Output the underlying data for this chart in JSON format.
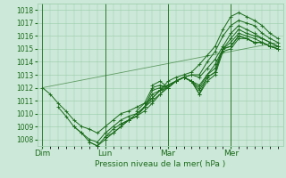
{
  "bg_color": "#cce8d8",
  "grid_color": "#99ccaa",
  "line_color": "#1a6b1a",
  "marker_color": "#1a6b1a",
  "xlabel": "Pression niveau de la mer( hPa )",
  "ylim": [
    1007.5,
    1018.5
  ],
  "yticks": [
    1008,
    1009,
    1010,
    1011,
    1012,
    1013,
    1014,
    1015,
    1016,
    1017,
    1018
  ],
  "xlabels": [
    "Dim",
    "Lun",
    "Mar",
    "Mer"
  ],
  "xtick_positions": [
    0,
    24,
    48,
    72
  ],
  "xlim": [
    -2,
    92
  ],
  "lines": [
    {
      "x": [
        0,
        3,
        6,
        9,
        12,
        15,
        18,
        21,
        24,
        27,
        30,
        33,
        36,
        39,
        42,
        45,
        48,
        51,
        54,
        57,
        60,
        63,
        66,
        69,
        72,
        75,
        78,
        81,
        84,
        87,
        90
      ],
      "y": [
        1012.0,
        1011.5,
        1010.8,
        1010.2,
        1009.5,
        1009.0,
        1008.8,
        1008.5,
        1009.0,
        1009.5,
        1010.0,
        1010.2,
        1010.5,
        1010.8,
        1011.2,
        1011.8,
        1012.5,
        1012.8,
        1013.0,
        1013.2,
        1013.8,
        1014.5,
        1015.2,
        1016.5,
        1017.5,
        1017.8,
        1017.5,
        1017.2,
        1016.8,
        1016.2,
        1015.8
      ]
    },
    {
      "x": [
        6,
        9,
        12,
        15,
        18,
        21,
        24,
        27,
        30,
        33,
        36,
        39,
        42,
        45,
        48,
        51,
        54,
        57,
        60,
        63,
        66,
        69,
        72,
        75,
        78,
        81,
        84,
        87,
        90
      ],
      "y": [
        1010.5,
        1009.8,
        1009.0,
        1008.5,
        1008.0,
        1007.8,
        1008.5,
        1009.0,
        1009.5,
        1009.8,
        1010.0,
        1010.5,
        1011.0,
        1011.5,
        1012.2,
        1012.5,
        1012.8,
        1013.0,
        1013.0,
        1014.0,
        1014.8,
        1016.0,
        1016.8,
        1017.2,
        1017.0,
        1016.8,
        1016.2,
        1015.8,
        1015.5
      ]
    },
    {
      "x": [
        12,
        15,
        18,
        21,
        24,
        27,
        30,
        33,
        36,
        39,
        42,
        45,
        48,
        51,
        54,
        57,
        60,
        63,
        66,
        69,
        72,
        75,
        78,
        81,
        84,
        87,
        90
      ],
      "y": [
        1009.0,
        1008.5,
        1007.8,
        1007.5,
        1008.2,
        1008.8,
        1009.2,
        1009.5,
        1009.8,
        1010.2,
        1010.8,
        1011.5,
        1012.0,
        1012.5,
        1012.8,
        1013.0,
        1012.8,
        1013.5,
        1014.2,
        1015.2,
        1016.2,
        1016.8,
        1016.5,
        1016.2,
        1015.8,
        1015.5,
        1015.2
      ]
    },
    {
      "x": [
        18,
        21,
        24,
        27,
        30,
        33,
        36,
        39,
        42,
        45,
        48,
        51,
        54,
        57,
        60,
        63,
        66,
        69,
        72,
        75,
        78,
        81,
        84,
        87,
        90
      ],
      "y": [
        1007.8,
        1007.5,
        1008.0,
        1008.5,
        1009.0,
        1009.5,
        1009.8,
        1010.5,
        1011.2,
        1011.8,
        1012.2,
        1012.5,
        1012.8,
        1012.5,
        1012.2,
        1013.0,
        1013.8,
        1015.0,
        1015.8,
        1016.5,
        1016.2,
        1016.0,
        1015.8,
        1015.5,
        1015.2
      ]
    },
    {
      "x": [
        24,
        27,
        30,
        33,
        36,
        39,
        42,
        45,
        48,
        51,
        54,
        57,
        60,
        63,
        66,
        69,
        72,
        75,
        78,
        81,
        84,
        87,
        90
      ],
      "y": [
        1008.2,
        1008.5,
        1009.0,
        1009.5,
        1009.8,
        1010.5,
        1011.5,
        1011.8,
        1012.0,
        1012.5,
        1012.8,
        1012.5,
        1012.0,
        1013.0,
        1013.5,
        1015.0,
        1015.5,
        1016.2,
        1016.0,
        1015.8,
        1015.5,
        1015.2,
        1015.0
      ]
    },
    {
      "x": [
        30,
        33,
        36,
        39,
        42,
        45,
        48,
        51,
        54,
        57,
        60,
        63,
        66,
        69,
        72,
        75,
        78,
        81,
        84,
        87,
        90
      ],
      "y": [
        1009.2,
        1009.5,
        1010.0,
        1010.5,
        1011.8,
        1012.0,
        1012.2,
        1012.5,
        1012.8,
        1012.5,
        1011.8,
        1012.8,
        1013.2,
        1015.0,
        1015.2,
        1016.0,
        1015.8,
        1015.5,
        1015.5,
        1015.2,
        1015.0
      ]
    },
    {
      "x": [
        36,
        39,
        42,
        45,
        48,
        51,
        54,
        57,
        60,
        63,
        66,
        69,
        72,
        75,
        78,
        81,
        84,
        87,
        90
      ],
      "y": [
        1010.2,
        1010.8,
        1012.0,
        1012.2,
        1012.0,
        1012.5,
        1012.8,
        1012.5,
        1011.5,
        1012.5,
        1013.0,
        1014.8,
        1015.0,
        1015.8,
        1015.8,
        1015.5,
        1015.5,
        1015.2,
        1015.0
      ]
    },
    {
      "x": [
        42,
        45,
        48,
        51,
        54,
        57,
        60,
        63,
        66,
        69,
        72,
        75,
        78,
        81,
        84,
        87,
        90
      ],
      "y": [
        1012.2,
        1012.5,
        1012.0,
        1012.5,
        1012.8,
        1012.5,
        1011.5,
        1012.8,
        1013.2,
        1015.0,
        1015.2,
        1016.0,
        1015.8,
        1015.5,
        1015.5,
        1015.2,
        1015.2
      ]
    },
    {
      "x": [
        0,
        90
      ],
      "y": [
        1012.0,
        1015.5
      ]
    }
  ],
  "vline_positions": [
    0,
    24,
    48,
    72
  ],
  "vline_color": "#2d7a2d"
}
